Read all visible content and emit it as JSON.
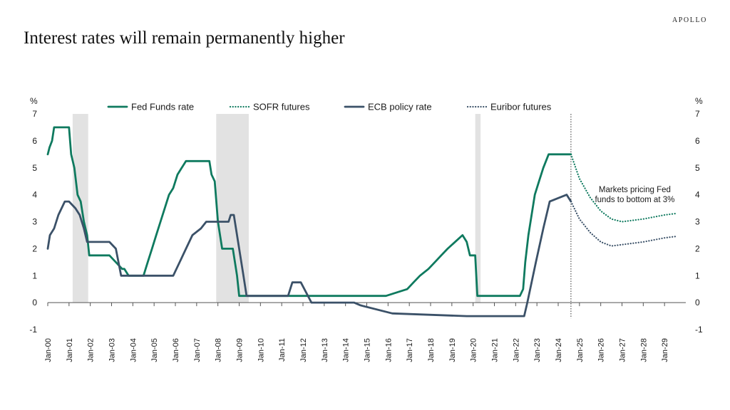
{
  "brand": "APOLLO",
  "title": "Interest rates will remain permanently higher",
  "chart_data": {
    "type": "line",
    "y_unit_left": "%",
    "y_unit_right": "%",
    "ylim": [
      -1,
      7
    ],
    "yticks": [
      -1,
      0,
      1,
      2,
      3,
      4,
      5,
      6,
      7
    ],
    "xlim": [
      2000,
      2030
    ],
    "xticks": [
      {
        "x": 2000,
        "label": "Jan-00"
      },
      {
        "x": 2001,
        "label": "Jan-01"
      },
      {
        "x": 2002,
        "label": "Jan-02"
      },
      {
        "x": 2003,
        "label": "Jan-03"
      },
      {
        "x": 2004,
        "label": "Jan-04"
      },
      {
        "x": 2005,
        "label": "Jan-05"
      },
      {
        "x": 2006,
        "label": "Jan-06"
      },
      {
        "x": 2007,
        "label": "Jan-07"
      },
      {
        "x": 2008,
        "label": "Jan-08"
      },
      {
        "x": 2009,
        "label": "Jan-09"
      },
      {
        "x": 2010,
        "label": "Jan-10"
      },
      {
        "x": 2011,
        "label": "Jan-11"
      },
      {
        "x": 2012,
        "label": "Jan-12"
      },
      {
        "x": 2013,
        "label": "Jan-13"
      },
      {
        "x": 2014,
        "label": "Jan-14"
      },
      {
        "x": 2015,
        "label": "Jan-15"
      },
      {
        "x": 2016,
        "label": "Jan-16"
      },
      {
        "x": 2017,
        "label": "Jan-17"
      },
      {
        "x": 2018,
        "label": "Jan-18"
      },
      {
        "x": 2019,
        "label": "Jan-19"
      },
      {
        "x": 2020,
        "label": "Jan-20"
      },
      {
        "x": 2021,
        "label": "Jan-21"
      },
      {
        "x": 2022,
        "label": "Jan-22"
      },
      {
        "x": 2023,
        "label": "Jan-23"
      },
      {
        "x": 2024,
        "label": "Jan-24"
      },
      {
        "x": 2025,
        "label": "Jan-25"
      },
      {
        "x": 2026,
        "label": "Jan-26"
      },
      {
        "x": 2027,
        "label": "Jan-27"
      },
      {
        "x": 2028,
        "label": "Jan-28"
      },
      {
        "x": 2029,
        "label": "Jan-29"
      }
    ],
    "recessions": [
      [
        2001.17,
        2001.9
      ],
      [
        2007.92,
        2009.45
      ],
      [
        2020.1,
        2020.35
      ]
    ],
    "forecast_start": 2024.6,
    "legend_position": "top",
    "annotation": {
      "lines": [
        "Markets pricing Fed",
        "funds to bottom at 3%"
      ],
      "x": 2027.6,
      "y": 4.1
    },
    "colors": {
      "fed": "#0f7a5f",
      "ecb": "#3b5168",
      "recession": "#e2e2e2",
      "axis": "#555555"
    },
    "series": [
      {
        "name": "Fed Funds rate",
        "color": "#0f7a5f",
        "style": "solid",
        "x": [
          2000,
          2000.08,
          2000.2,
          2000.3,
          2000.4,
          2001,
          2001.1,
          2001.25,
          2001.4,
          2001.55,
          2001.7,
          2001.85,
          2001.95,
          2002.9,
          2003.5,
          2003.6,
          2003.8,
          2004.5,
          2004.7,
          2004.9,
          2005.1,
          2005.3,
          2005.5,
          2005.7,
          2005.9,
          2006.1,
          2006.3,
          2006.5,
          2007.6,
          2007.7,
          2007.85,
          2008,
          2008.2,
          2008.7,
          2008.9,
          2009,
          2015.9,
          2016.9,
          2017.2,
          2017.5,
          2017.9,
          2018.2,
          2018.5,
          2018.8,
          2019.5,
          2019.7,
          2019.85,
          2020.1,
          2020.2,
          2022.2,
          2022.35,
          2022.45,
          2022.6,
          2022.75,
          2022.9,
          2023.1,
          2023.3,
          2023.55,
          2024.6
        ],
        "y": [
          5.5,
          5.75,
          6.0,
          6.5,
          6.5,
          6.5,
          5.5,
          5.0,
          4.0,
          3.75,
          3.0,
          2.5,
          1.75,
          1.75,
          1.25,
          1.25,
          1.0,
          1.0,
          1.5,
          2.0,
          2.5,
          3.0,
          3.5,
          4.0,
          4.25,
          4.75,
          5.0,
          5.25,
          5.25,
          4.75,
          4.5,
          3.0,
          2.0,
          2.0,
          1.0,
          0.25,
          0.25,
          0.5,
          0.75,
          1.0,
          1.25,
          1.5,
          1.75,
          2.0,
          2.5,
          2.25,
          1.75,
          1.75,
          0.25,
          0.25,
          0.5,
          1.5,
          2.5,
          3.25,
          4.0,
          4.5,
          5.0,
          5.5,
          5.5
        ]
      },
      {
        "name": "SOFR futures",
        "color": "#0f7a5f",
        "style": "dotted",
        "x": [
          2024.6,
          2025.0,
          2025.5,
          2026.0,
          2026.5,
          2027.0,
          2028.0,
          2029.0,
          2029.5
        ],
        "y": [
          5.5,
          4.6,
          3.9,
          3.4,
          3.1,
          3.0,
          3.1,
          3.25,
          3.3
        ]
      },
      {
        "name": "ECB policy rate",
        "color": "#3b5168",
        "style": "solid",
        "x": [
          2000,
          2000.1,
          2000.3,
          2000.5,
          2000.8,
          2001,
          2001.3,
          2001.5,
          2001.7,
          2001.85,
          2002.9,
          2003.2,
          2003.45,
          2005.9,
          2006.2,
          2006.5,
          2006.8,
          2007.2,
          2007.45,
          2008.5,
          2008.6,
          2008.75,
          2009,
          2009.2,
          2009.35,
          2011.3,
          2011.5,
          2011.9,
          2012.4,
          2014.4,
          2014.7,
          2016.2,
          2019.7,
          2022.4,
          2022.55,
          2022.75,
          2022.95,
          2023.3,
          2023.6,
          2024.4,
          2024.6
        ],
        "y": [
          2.0,
          2.5,
          2.75,
          3.25,
          3.75,
          3.75,
          3.5,
          3.25,
          2.75,
          2.25,
          2.25,
          2.0,
          1.0,
          1.0,
          1.5,
          2.0,
          2.5,
          2.75,
          3.0,
          3.0,
          3.25,
          3.25,
          2.0,
          1.0,
          0.25,
          0.25,
          0.75,
          0.75,
          0.0,
          0.0,
          -0.1,
          -0.4,
          -0.5,
          -0.5,
          0.0,
          0.75,
          1.5,
          2.75,
          3.75,
          4.0,
          3.75
        ]
      },
      {
        "name": "Euribor futures",
        "color": "#3b5168",
        "style": "dotted",
        "x": [
          2024.6,
          2025.0,
          2025.5,
          2026.0,
          2026.5,
          2027.0,
          2028.0,
          2029.0,
          2029.5
        ],
        "y": [
          3.75,
          3.1,
          2.6,
          2.25,
          2.1,
          2.15,
          2.25,
          2.4,
          2.45
        ]
      }
    ]
  }
}
